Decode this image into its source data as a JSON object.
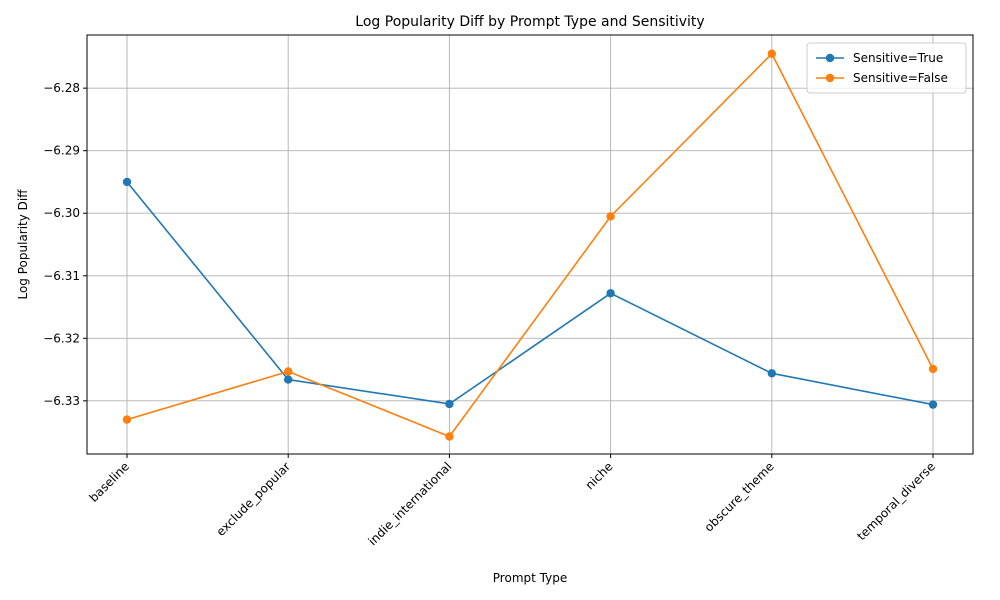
{
  "chart_data": {
    "type": "line",
    "title": "Log Popularity Diff by Prompt Type and Sensitivity",
    "xlabel": "Prompt Type",
    "ylabel": "Log Popularity Diff",
    "categories": [
      "baseline",
      "exclude_popular",
      "indie_international",
      "niche",
      "obscure_theme",
      "temporal_diverse"
    ],
    "ylim": [
      -6.3385,
      -6.2715
    ],
    "yticks": [
      -6.33,
      -6.32,
      -6.31,
      -6.3,
      -6.29,
      -6.28
    ],
    "ytick_labels": [
      "−6.33",
      "−6.32",
      "−6.31",
      "−6.30",
      "−6.29",
      "−6.28"
    ],
    "grid": true,
    "legend_position": "top-right",
    "series": [
      {
        "name": "Sensitive=True",
        "color": "#1f77b4",
        "values": [
          -6.295,
          -6.3266,
          -6.3305,
          -6.3128,
          -6.3256,
          -6.3306
        ]
      },
      {
        "name": "Sensitive=False",
        "color": "#ff7f0e",
        "values": [
          -6.333,
          -6.3253,
          -6.3357,
          -6.3005,
          -6.2745,
          -6.3249
        ]
      }
    ]
  }
}
